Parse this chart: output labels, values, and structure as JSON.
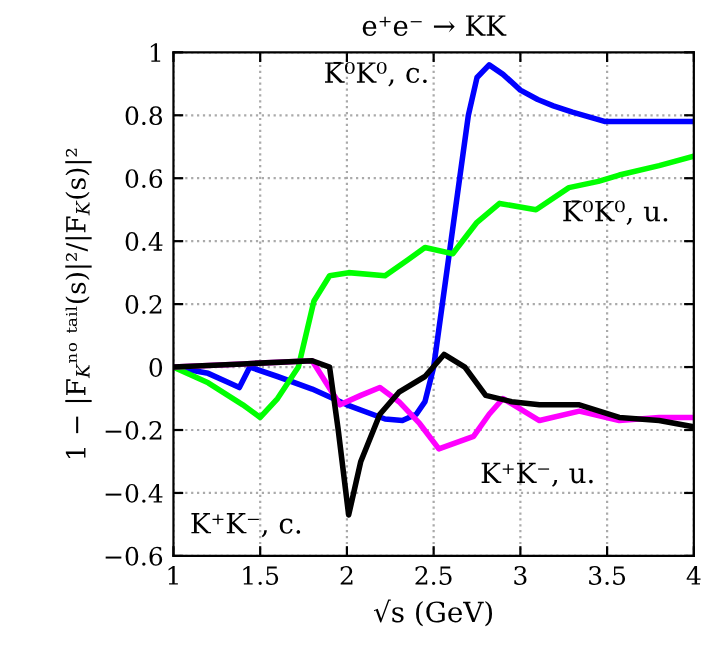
{
  "chart_data": {
    "type": "line",
    "title": "e⁺e⁻ → KK",
    "xlabel": "√s (GeV)",
    "ylabel": "1 − |F$_{K}$ⁿᵒ ᵗᵃⁱˡ(s)|²/|F$_{K}$(s)|²",
    "xlim": [
      1,
      4
    ],
    "ylim": [
      -0.6,
      1
    ],
    "xticks": [
      1,
      1.5,
      2,
      2.5,
      3,
      3.5,
      4
    ],
    "yticks": [
      -0.6,
      -0.4,
      -0.2,
      0,
      0.2,
      0.4,
      0.6,
      0.8,
      1
    ],
    "grid": true,
    "line_style": "solid",
    "marker": "none",
    "legend": false,
    "series": [
      {
        "color": "#0000ff",
        "x": [
          1,
          1.2,
          1.32,
          1.38,
          1.44,
          1.6,
          1.8,
          2,
          2.22,
          2.32,
          2.4,
          2.45,
          2.5,
          2.55,
          2.6,
          2.65,
          2.7,
          2.75,
          2.82,
          2.9,
          3,
          3.1,
          3.19,
          3.3,
          3.49,
          3.7,
          4
        ],
        "values": [
          0,
          -0.02,
          -0.05,
          -0.065,
          0,
          -0.03,
          -0.07,
          -0.12,
          -0.165,
          -0.17,
          -0.15,
          -0.11,
          0,
          0.2,
          0.4,
          0.6,
          0.8,
          0.92,
          0.96,
          0.93,
          0.88,
          0.85,
          0.83,
          0.81,
          0.78,
          0.78,
          0.78
        ]
      },
      {
        "color": "#00ff00",
        "x": [
          1,
          1.2,
          1.4,
          1.5,
          1.6,
          1.72,
          1.81,
          1.9,
          2.01,
          2.22,
          2.35,
          2.45,
          2.61,
          2.75,
          2.88,
          3.09,
          3.28,
          3.45,
          3.57,
          3.8,
          4
        ],
        "values": [
          0,
          -0.05,
          -0.12,
          -0.16,
          -0.1,
          0,
          0.21,
          0.29,
          0.3,
          0.29,
          0.34,
          0.38,
          0.36,
          0.46,
          0.52,
          0.5,
          0.57,
          0.59,
          0.61,
          0.64,
          0.67
        ]
      },
      {
        "color": "#ff00ff",
        "x": [
          1,
          1.4,
          1.8,
          1.96,
          2.08,
          2.19,
          2.3,
          2.42,
          2.53,
          2.63,
          2.73,
          2.82,
          2.9,
          3.11,
          3.34,
          3.57,
          3.8,
          4
        ],
        "values": [
          0,
          0.01,
          0.02,
          -0.12,
          -0.09,
          -0.065,
          -0.11,
          -0.18,
          -0.26,
          -0.24,
          -0.22,
          -0.15,
          -0.1,
          -0.17,
          -0.14,
          -0.17,
          -0.16,
          -0.16
        ]
      },
      {
        "color": "#000000",
        "x": [
          1,
          1.4,
          1.8,
          1.9,
          1.95,
          2.01,
          2.08,
          2.19,
          2.3,
          2.45,
          2.56,
          2.68,
          2.8,
          2.95,
          3.11,
          3.34,
          3.57,
          3.8,
          4
        ],
        "values": [
          0,
          0.01,
          0.02,
          0.0,
          -0.2,
          -0.47,
          -0.3,
          -0.15,
          -0.08,
          -0.03,
          0.04,
          0.0,
          -0.09,
          -0.11,
          -0.12,
          -0.12,
          -0.16,
          -0.17,
          -0.19
        ]
      }
    ],
    "annotations": [
      "K̄⁰K⁰, c.",
      "K̄⁰K⁰, u.",
      "K⁺K⁻, u.",
      "K⁺K⁻, c."
    ]
  }
}
